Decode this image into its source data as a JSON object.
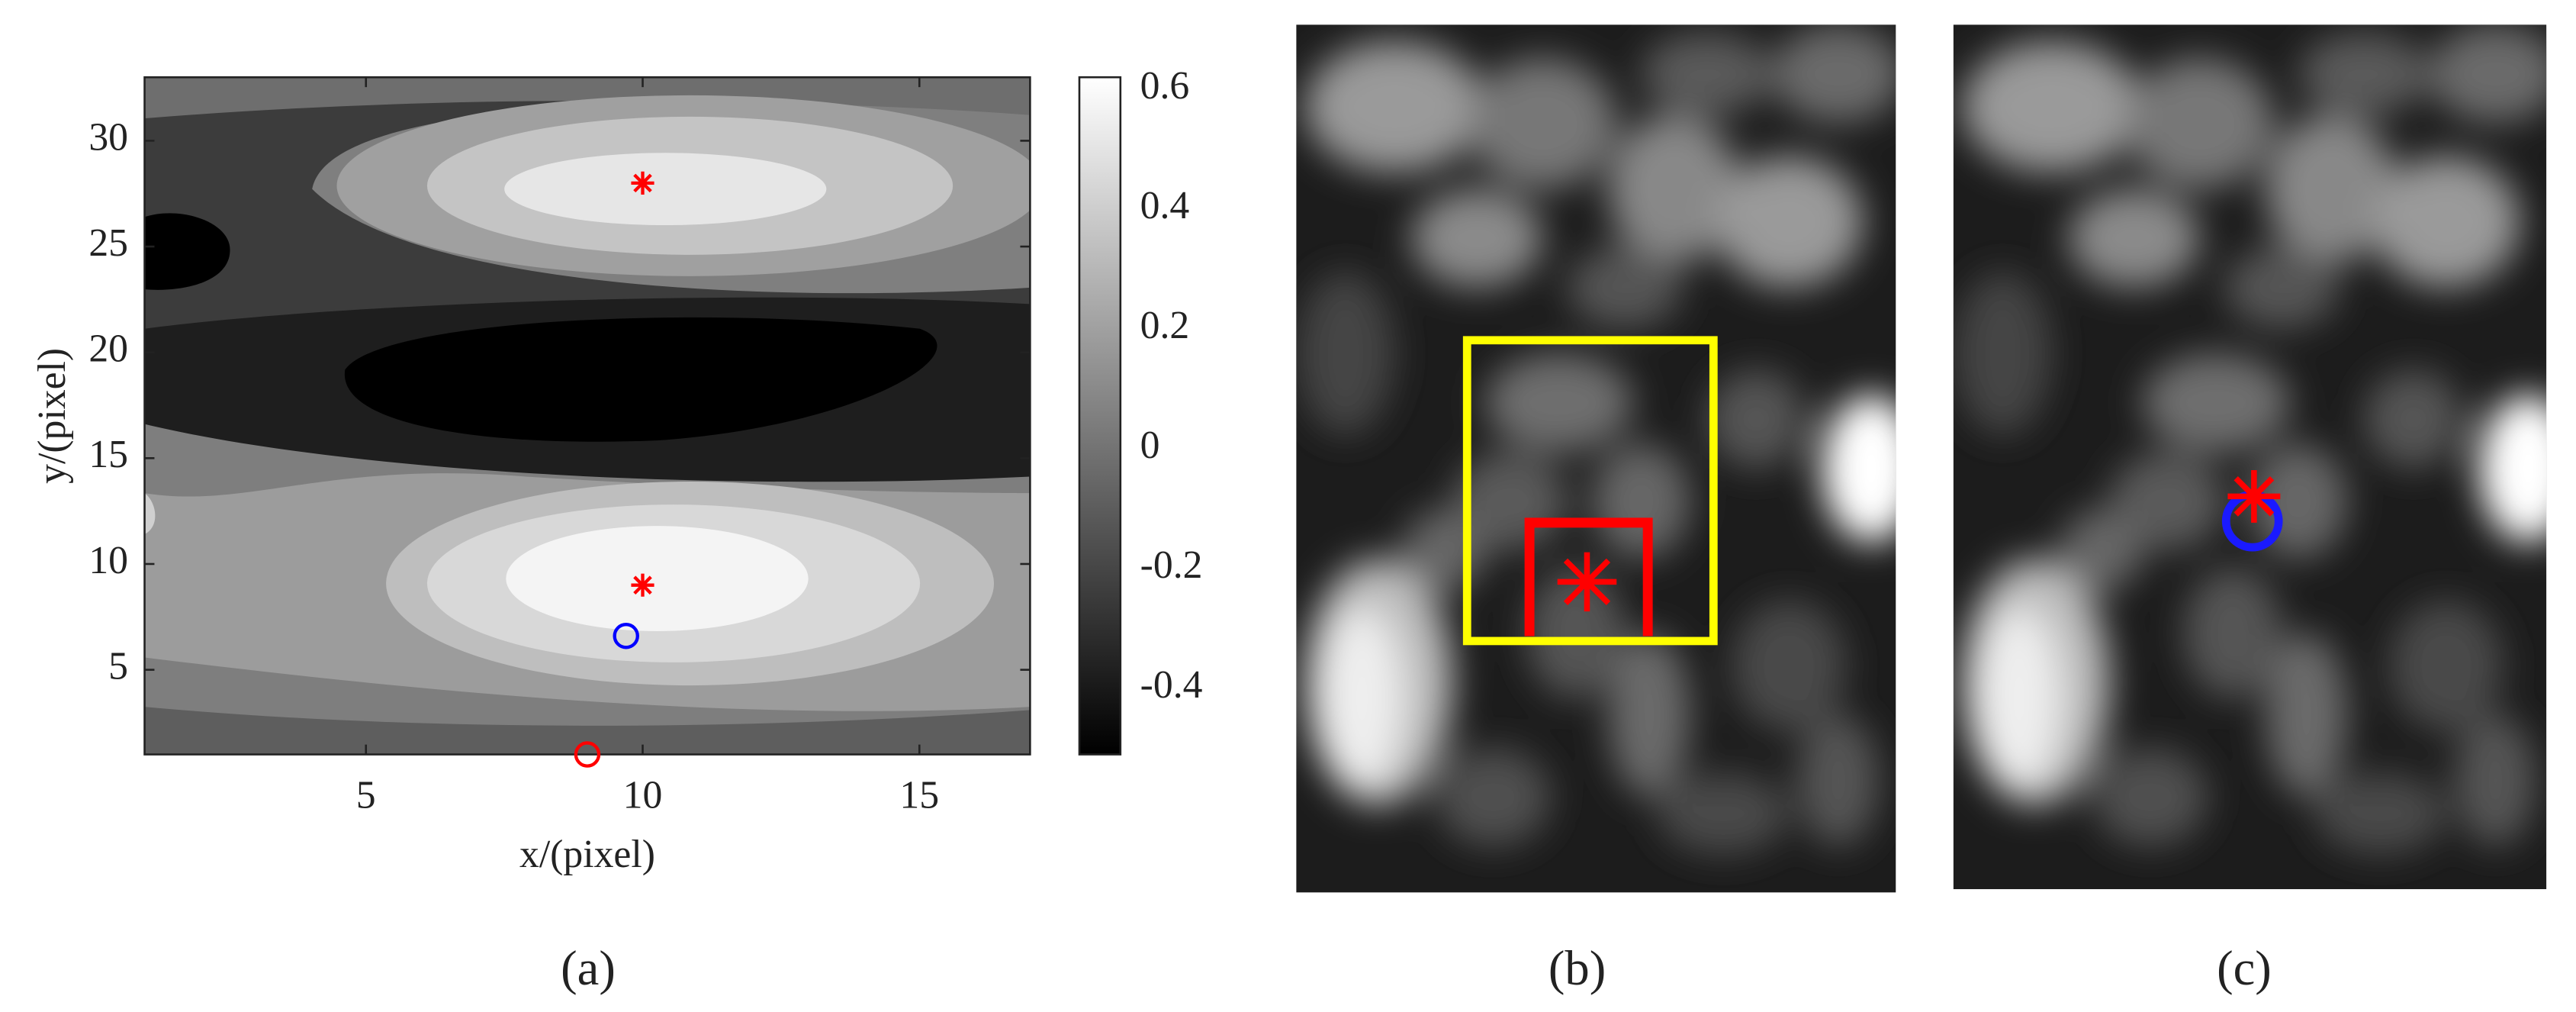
{
  "chart_data": [
    {
      "type": "contour",
      "xlabel": "x/(pixel)",
      "ylabel": "y/(pixel)",
      "xlim": [
        1,
        17
      ],
      "ylim": [
        1,
        33
      ],
      "xticks": [
        5,
        10,
        15
      ],
      "yticks": [
        5,
        10,
        15,
        20,
        25,
        30
      ],
      "colorbar": {
        "clim": [
          -0.51,
          0.62
        ],
        "ticks": [
          0.6,
          0.4,
          0.2,
          0,
          -0.2,
          -0.4
        ]
      },
      "series": [
        {
          "marker": "star",
          "color": "#ff0000",
          "x": [
            10,
            10
          ],
          "values": [
            28,
            9
          ]
        },
        {
          "marker": "circle",
          "color": "#0000ff",
          "x": [
            9.7
          ],
          "values": [
            6.6
          ]
        },
        {
          "marker": "circle",
          "color": "#ff0000",
          "x": [
            9
          ],
          "values": [
            1
          ]
        }
      ]
    }
  ],
  "panel_labels": [
    "(a)",
    "(b)",
    "(c)"
  ]
}
